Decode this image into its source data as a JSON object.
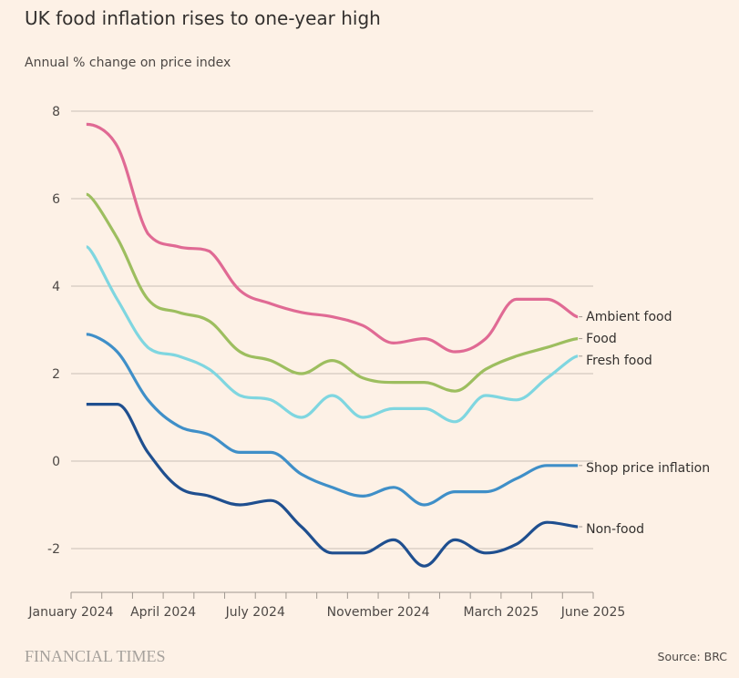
{
  "header": {
    "title": "UK food inflation rises to one-year high",
    "subtitle": "Annual % change on price index"
  },
  "footer": {
    "logo": "FINANCIAL TIMES",
    "source": "Source: BRC"
  },
  "chart_data": {
    "type": "line",
    "title": "UK food inflation rises to one-year high",
    "subtitle": "Annual % change on price index",
    "xlabel": "",
    "ylabel": "Annual % change",
    "ylim": [
      -3,
      8.5
    ],
    "yticks": [
      8,
      6,
      4,
      2,
      0,
      -2
    ],
    "grid": true,
    "legend": "direct-labels-right",
    "x": [
      "Jan 2024",
      "Feb 2024",
      "Mar 2024",
      "Apr 2024",
      "May 2024",
      "Jun 2024",
      "Jul 2024",
      "Aug 2024",
      "Sep 2024",
      "Oct 2024",
      "Nov 2024",
      "Dec 2024",
      "Jan 2025",
      "Feb 2025",
      "Mar 2025",
      "Apr 2025",
      "May 2025"
    ],
    "xtick_labels": [
      {
        "label": "January 2024",
        "month_index": 0
      },
      {
        "label": "April 2024",
        "month_index": 3
      },
      {
        "label": "July 2024",
        "month_index": 6
      },
      {
        "label": "November 2024",
        "month_index": 10
      },
      {
        "label": "March 2025",
        "month_index": 14
      },
      {
        "label": "June 2025",
        "month_index": 17
      }
    ],
    "xtick_count": 18,
    "series": [
      {
        "name": "Ambient food",
        "color": "#e06a94",
        "values": [
          7.7,
          7.2,
          5.2,
          4.9,
          4.8,
          3.9,
          3.6,
          3.4,
          3.3,
          3.1,
          2.7,
          2.8,
          2.5,
          2.8,
          3.7,
          3.7,
          3.3
        ]
      },
      {
        "name": "Food",
        "color": "#9dbe5f",
        "values": [
          6.1,
          5.1,
          3.7,
          3.4,
          3.2,
          2.5,
          2.3,
          2.0,
          2.3,
          1.9,
          1.8,
          1.8,
          1.6,
          2.1,
          2.4,
          2.6,
          2.8
        ]
      },
      {
        "name": "Fresh food",
        "color": "#7fd6e0",
        "values": [
          4.9,
          3.7,
          2.6,
          2.4,
          2.1,
          1.5,
          1.4,
          1.0,
          1.5,
          1.0,
          1.2,
          1.2,
          0.9,
          1.5,
          1.4,
          1.9,
          2.4
        ]
      },
      {
        "name": "Shop price inflation",
        "color": "#3f8fc8",
        "values": [
          2.9,
          2.5,
          1.4,
          0.8,
          0.6,
          0.2,
          0.2,
          -0.3,
          -0.6,
          -0.8,
          -0.6,
          -1.0,
          -0.7,
          -0.7,
          -0.4,
          -0.1,
          -0.1
        ]
      },
      {
        "name": "Non-food",
        "color": "#1f4f8f",
        "values": [
          1.3,
          1.3,
          0.2,
          -0.6,
          -0.8,
          -1.0,
          -0.9,
          -1.5,
          -2.1,
          -2.1,
          -1.8,
          -2.4,
          -1.8,
          -2.1,
          -1.9,
          -1.4,
          -1.5
        ]
      }
    ]
  }
}
